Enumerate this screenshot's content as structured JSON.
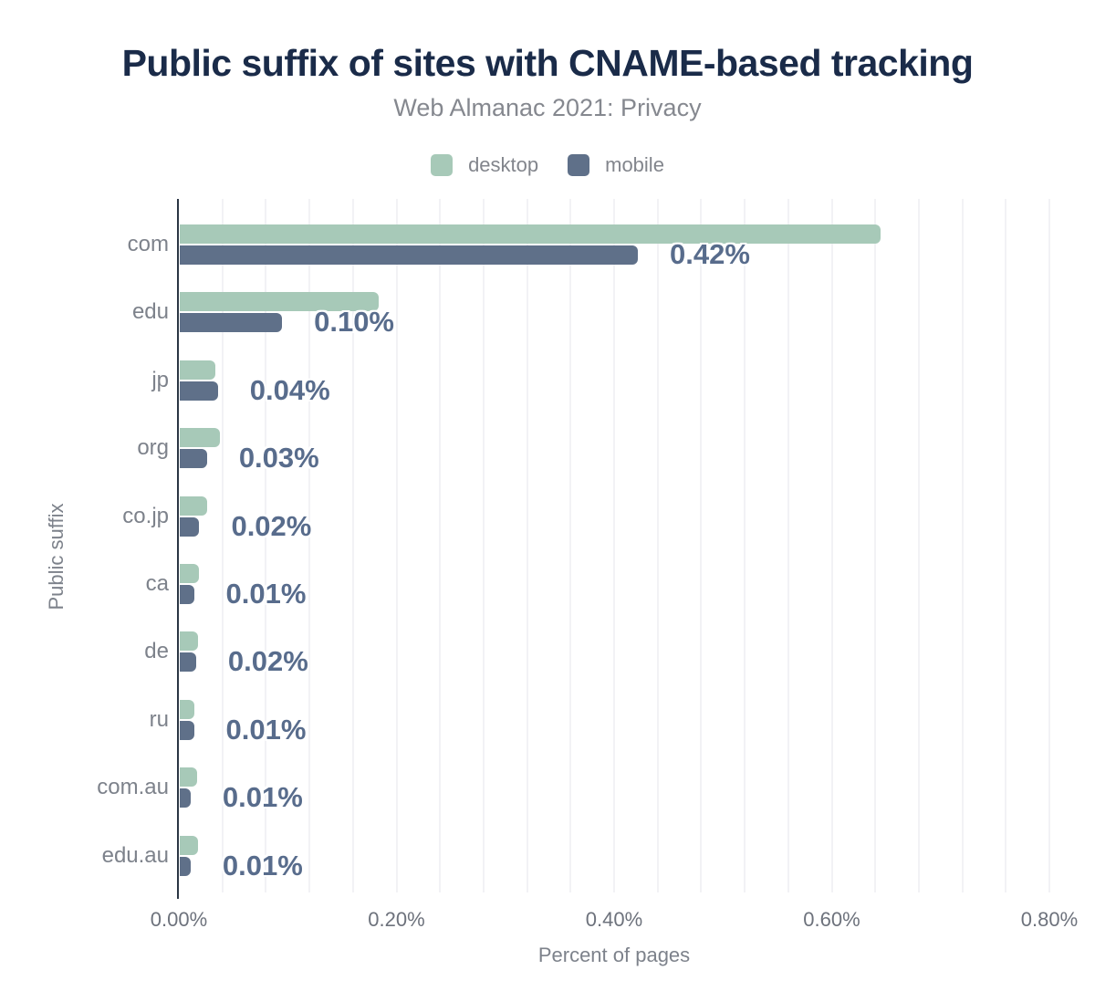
{
  "header": {
    "title": "Public suffix of sites with CNAME-based tracking",
    "subtitle": "Web Almanac 2021: Privacy"
  },
  "legend": [
    {
      "label": "desktop",
      "color": "#a7c9b8"
    },
    {
      "label": "mobile",
      "color": "#5f7089"
    }
  ],
  "chart_data": {
    "type": "bar",
    "orientation": "horizontal",
    "title": "Public suffix of sites with CNAME-based tracking",
    "subtitle": "Web Almanac 2021: Privacy",
    "xlabel": "Percent of pages",
    "ylabel": "Public suffix",
    "xlim": [
      0,
      0.8
    ],
    "x_tick_values": [
      0,
      0.2,
      0.4,
      0.6,
      0.8
    ],
    "x_tick_labels": [
      "0.00%",
      "0.20%",
      "0.40%",
      "0.60%",
      "0.80%"
    ],
    "grid": "vertical minor gridlines every 0.04%",
    "legend_position": "top center",
    "categories": [
      "com",
      "edu",
      "jp",
      "org",
      "co.jp",
      "ca",
      "de",
      "ru",
      "com.au",
      "edu.au"
    ],
    "series": [
      {
        "name": "desktop",
        "color": "#a7c9b8",
        "values": [
          0.644,
          0.183,
          0.033,
          0.037,
          0.025,
          0.018,
          0.017,
          0.013,
          0.016,
          0.017
        ]
      },
      {
        "name": "mobile",
        "color": "#5f7089",
        "values": [
          0.421,
          0.094,
          0.035,
          0.025,
          0.018,
          0.013,
          0.015,
          0.013,
          0.01,
          0.01
        ]
      }
    ],
    "data_labels": [
      "0.42%",
      "0.10%",
      "0.04%",
      "0.03%",
      "0.02%",
      "0.01%",
      "0.02%",
      "0.01%",
      "0.01%",
      "0.01%"
    ],
    "data_labels_series": "mobile"
  },
  "colors": {
    "title": "#1a2b49",
    "subtitle": "#85888f",
    "axis_text": "#7d828b",
    "tick_text": "#6d727c",
    "data_label": "#586c8c",
    "axis_line": "#2b3644",
    "gridline": "#f2f2f5",
    "background": "#ffffff"
  }
}
